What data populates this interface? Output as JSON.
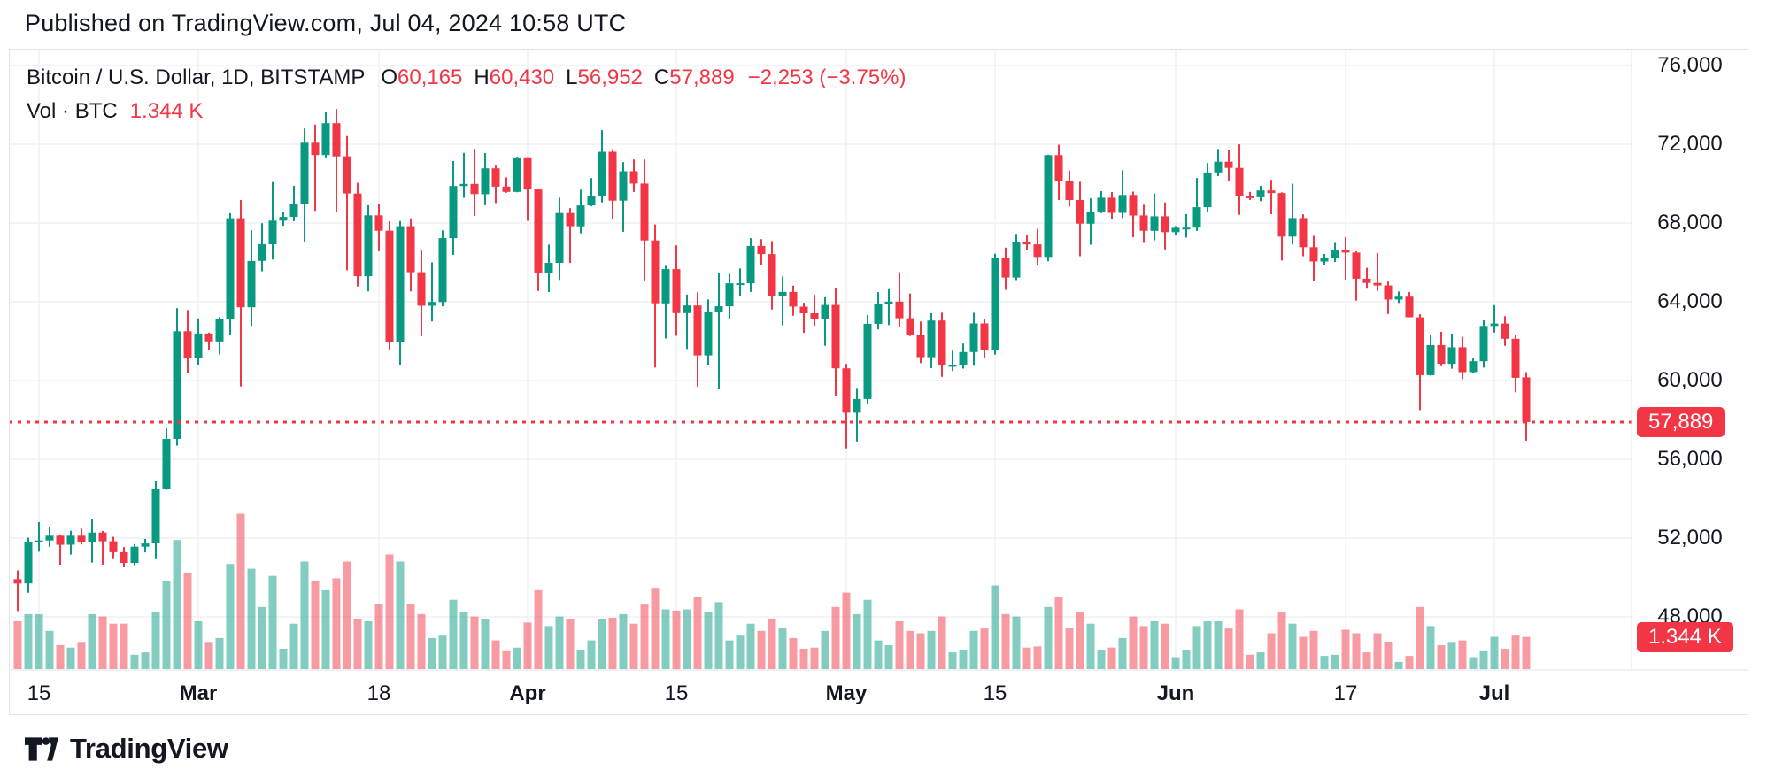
{
  "header": {
    "published_line": "Published on TradingView.com, Jul 04, 2024 10:58 UTC"
  },
  "legend": {
    "symbol_line": {
      "title": "Bitcoin / U.S. Dollar, 1D, BITSTAMP",
      "o_label": "O",
      "o": "60,165",
      "h_label": "H",
      "h": "60,430",
      "l_label": "L",
      "l": "56,952",
      "c_label": "C",
      "c": "57,889",
      "change": "−2,253 (−3.75%)"
    },
    "volume_line": {
      "label": "Vol · BTC",
      "value": "1.344 K"
    }
  },
  "price_axis": {
    "ticks": [
      {
        "label": "76,000",
        "value": 76000
      },
      {
        "label": "72,000",
        "value": 72000
      },
      {
        "label": "68,000",
        "value": 68000
      },
      {
        "label": "64,000",
        "value": 64000
      },
      {
        "label": "60,000",
        "value": 60000
      },
      {
        "label": "56,000",
        "value": 56000
      },
      {
        "label": "52,000",
        "value": 52000
      },
      {
        "label": "48,000",
        "value": 48000
      }
    ],
    "last_price_badge": "57,889",
    "volume_badge": "1.344 K"
  },
  "time_axis": {
    "ticks": [
      {
        "i": 2,
        "label": "15",
        "bold": false
      },
      {
        "i": 17,
        "label": "Mar",
        "bold": true
      },
      {
        "i": 34,
        "label": "18",
        "bold": false
      },
      {
        "i": 48,
        "label": "Apr",
        "bold": true
      },
      {
        "i": 62,
        "label": "15",
        "bold": false
      },
      {
        "i": 78,
        "label": "May",
        "bold": true
      },
      {
        "i": 92,
        "label": "15",
        "bold": false
      },
      {
        "i": 109,
        "label": "Jun",
        "bold": true
      },
      {
        "i": 125,
        "label": "17",
        "bold": false
      },
      {
        "i": 139,
        "label": "Jul",
        "bold": true
      }
    ]
  },
  "footer": {
    "brand": "TradingView"
  },
  "colors": {
    "up": "#089981",
    "down": "#F23645",
    "vol_up": "rgba(8,153,129,0.5)",
    "vol_down": "rgba(242,54,69,0.5)",
    "grid": "#EEF1F5",
    "frame": "#E0E3EB",
    "text": "#131722",
    "badge_bg": "#F23645",
    "dotted_line": "#F23645"
  },
  "chart_data": {
    "type": "candlestick+volume",
    "title": "Bitcoin / U.S. Dollar",
    "symbol": "BTCUSD",
    "exchange": "BITSTAMP",
    "timeframe": "1D",
    "legend_position": "top-left",
    "grid": true,
    "price_axis_ticks": [
      76000,
      72000,
      68000,
      64000,
      60000,
      56000,
      52000,
      48000
    ],
    "view_price_range": [
      45400,
      76900
    ],
    "last_close": 57889,
    "last_volume_k": 1.344,
    "columns": [
      "date",
      "open",
      "high",
      "low",
      "close",
      "volume_kBTC"
    ],
    "candles": [
      [
        "2024-02-13",
        49917,
        50368,
        48300,
        49699,
        2.0
      ],
      [
        "2024-02-14",
        49699,
        52025,
        49225,
        51795,
        2.3
      ],
      [
        "2024-02-15",
        51795,
        52816,
        51314,
        51880,
        2.3
      ],
      [
        "2024-02-16",
        51880,
        52555,
        51551,
        52124,
        1.6
      ],
      [
        "2024-02-17",
        52124,
        52191,
        50622,
        51662,
        1.0
      ],
      [
        "2024-02-18",
        51662,
        52377,
        51167,
        52122,
        0.9
      ],
      [
        "2024-02-19",
        52122,
        52488,
        51677,
        51779,
        1.1
      ],
      [
        "2024-02-20",
        51779,
        52985,
        50757,
        52284,
        2.3
      ],
      [
        "2024-02-21",
        52284,
        52368,
        50625,
        51839,
        2.2
      ],
      [
        "2024-02-22",
        51839,
        52066,
        50940,
        51288,
        1.9
      ],
      [
        "2024-02-23",
        51288,
        51549,
        50521,
        50744,
        1.9
      ],
      [
        "2024-02-24",
        50744,
        51698,
        50585,
        51568,
        0.6
      ],
      [
        "2024-02-25",
        51568,
        51956,
        51279,
        51728,
        0.7
      ],
      [
        "2024-02-26",
        51728,
        54910,
        50931,
        54476,
        2.4
      ],
      [
        "2024-02-27",
        54476,
        57585,
        54450,
        57037,
        3.7
      ],
      [
        "2024-02-28",
        57037,
        63676,
        56691,
        62504,
        5.4
      ],
      [
        "2024-02-29",
        62504,
        63585,
        60364,
        61130,
        4.0
      ],
      [
        "2024-03-01",
        61130,
        63155,
        60777,
        62387,
        2.0
      ],
      [
        "2024-03-02",
        62387,
        62433,
        61561,
        61987,
        1.1
      ],
      [
        "2024-03-03",
        61987,
        63231,
        61320,
        63113,
        1.3
      ],
      [
        "2024-03-04",
        63113,
        68499,
        62300,
        68245,
        4.4
      ],
      [
        "2024-03-05",
        68245,
        69170,
        59700,
        63724,
        6.5
      ],
      [
        "2024-03-06",
        63724,
        67641,
        62779,
        66074,
        4.2
      ],
      [
        "2024-03-07",
        66074,
        67990,
        65551,
        66925,
        2.6
      ],
      [
        "2024-03-08",
        66925,
        70083,
        66151,
        68124,
        3.9
      ],
      [
        "2024-03-09",
        68124,
        68541,
        67861,
        68313,
        0.85
      ],
      [
        "2024-03-10",
        68313,
        69887,
        68094,
        68955,
        1.9
      ],
      [
        "2024-03-11",
        68955,
        72800,
        67024,
        72078,
        4.5
      ],
      [
        "2024-03-12",
        72078,
        73000,
        68620,
        71452,
        3.7
      ],
      [
        "2024-03-13",
        71452,
        73637,
        71334,
        73072,
        3.3
      ],
      [
        "2024-03-14",
        73072,
        73794,
        68555,
        71388,
        3.8
      ],
      [
        "2024-03-15",
        71388,
        72419,
        65600,
        69499,
        4.5
      ],
      [
        "2024-03-16",
        69499,
        70043,
        64780,
        65300,
        2.1
      ],
      [
        "2024-03-17",
        65300,
        68904,
        64533,
        68393,
        2.0
      ],
      [
        "2024-03-18",
        68393,
        68956,
        66565,
        67609,
        2.7
      ],
      [
        "2024-03-19",
        67609,
        68097,
        61555,
        61937,
        4.8
      ],
      [
        "2024-03-20",
        61937,
        68100,
        60775,
        67840,
        4.5
      ],
      [
        "2024-03-21",
        67840,
        68240,
        64529,
        65501,
        2.7
      ],
      [
        "2024-03-22",
        65501,
        66649,
        62260,
        63796,
        2.3
      ],
      [
        "2024-03-23",
        63796,
        65999,
        63000,
        63990,
        1.3
      ],
      [
        "2024-03-24",
        63990,
        67628,
        63772,
        67234,
        1.4
      ],
      [
        "2024-03-25",
        67234,
        71150,
        66385,
        69880,
        2.9
      ],
      [
        "2024-03-26",
        69880,
        71561,
        69280,
        69988,
        2.4
      ],
      [
        "2024-03-27",
        69988,
        71769,
        68359,
        69469,
        2.2
      ],
      [
        "2024-03-28",
        69469,
        71552,
        68903,
        70780,
        2.1
      ],
      [
        "2024-03-29",
        70780,
        70916,
        69009,
        69850,
        1.2
      ],
      [
        "2024-03-30",
        69850,
        70321,
        69540,
        69582,
        0.75
      ],
      [
        "2024-03-31",
        69582,
        71366,
        69562,
        71333,
        0.9
      ],
      [
        "2024-04-01",
        71333,
        71342,
        68110,
        69702,
        1.95
      ],
      [
        "2024-04-02",
        69702,
        69708,
        64550,
        65446,
        3.3
      ],
      [
        "2024-04-03",
        65446,
        66903,
        64493,
        65980,
        1.8
      ],
      [
        "2024-04-04",
        65980,
        69291,
        65113,
        68508,
        2.2
      ],
      [
        "2024-04-05",
        68508,
        68756,
        65972,
        67837,
        2.1
      ],
      [
        "2024-04-06",
        67837,
        69692,
        67482,
        68896,
        0.8
      ],
      [
        "2024-04-07",
        68896,
        70284,
        68851,
        69360,
        1.2
      ],
      [
        "2024-04-08",
        69360,
        72715,
        69043,
        71620,
        2.1
      ],
      [
        "2024-04-09",
        71620,
        71742,
        68212,
        69140,
        2.15
      ],
      [
        "2024-04-10",
        69140,
        71093,
        67558,
        70631,
        2.3
      ],
      [
        "2024-04-11",
        70631,
        71227,
        69576,
        70006,
        1.9
      ],
      [
        "2024-04-12",
        70006,
        71222,
        65086,
        67116,
        2.7
      ],
      [
        "2024-04-13",
        67116,
        67929,
        60660,
        63924,
        3.4
      ],
      [
        "2024-04-14",
        63924,
        65824,
        62134,
        65661,
        2.5
      ],
      [
        "2024-04-15",
        65661,
        66867,
        62274,
        63426,
        2.45
      ],
      [
        "2024-04-16",
        63426,
        64365,
        61600,
        63811,
        2.5
      ],
      [
        "2024-04-17",
        63811,
        64486,
        59678,
        61277,
        3.0
      ],
      [
        "2024-04-18",
        61277,
        64117,
        60803,
        63470,
        2.4
      ],
      [
        "2024-04-19",
        63470,
        65450,
        59600,
        63770,
        2.8
      ],
      [
        "2024-04-20",
        63770,
        65419,
        63110,
        64940,
        1.2
      ],
      [
        "2024-04-21",
        64940,
        65695,
        64300,
        64941,
        1.4
      ],
      [
        "2024-04-22",
        64941,
        67232,
        64500,
        66837,
        1.9
      ],
      [
        "2024-04-23",
        66837,
        67184,
        65850,
        66423,
        1.6
      ],
      [
        "2024-04-24",
        66423,
        67084,
        63606,
        64290,
        2.1
      ],
      [
        "2024-04-25",
        64290,
        65280,
        62794,
        64498,
        1.7
      ],
      [
        "2024-04-26",
        64498,
        64820,
        63297,
        63756,
        1.3
      ],
      [
        "2024-04-27",
        63756,
        63950,
        62424,
        63419,
        0.85
      ],
      [
        "2024-04-28",
        63419,
        64355,
        62781,
        63113,
        0.9
      ],
      [
        "2024-04-29",
        63113,
        64228,
        61765,
        63841,
        1.6
      ],
      [
        "2024-04-30",
        63841,
        64700,
        59191,
        60622,
        2.6
      ],
      [
        "2024-05-01",
        60622,
        60841,
        56552,
        58364,
        3.2
      ],
      [
        "2024-05-02",
        58364,
        59625,
        56911,
        59060,
        2.3
      ],
      [
        "2024-05-03",
        59060,
        63333,
        58802,
        62882,
        2.9
      ],
      [
        "2024-05-04",
        62882,
        64494,
        62600,
        63892,
        1.2
      ],
      [
        "2024-05-05",
        63892,
        64640,
        62822,
        64012,
        1.0
      ],
      [
        "2024-05-06",
        64012,
        65500,
        62700,
        63165,
        2.0
      ],
      [
        "2024-05-07",
        63165,
        64420,
        62261,
        62312,
        1.6
      ],
      [
        "2024-05-08",
        62312,
        63000,
        60888,
        61187,
        1.5
      ],
      [
        "2024-05-09",
        61187,
        63420,
        60630,
        63049,
        1.6
      ],
      [
        "2024-05-10",
        63049,
        63450,
        60190,
        60792,
        2.2
      ],
      [
        "2024-05-11",
        60792,
        61515,
        60487,
        60793,
        0.7
      ],
      [
        "2024-05-12",
        60793,
        61880,
        60610,
        61448,
        0.8
      ],
      [
        "2024-05-13",
        61448,
        63440,
        60749,
        62901,
        1.6
      ],
      [
        "2024-05-14",
        62901,
        63109,
        61142,
        61552,
        1.7
      ],
      [
        "2024-05-15",
        61552,
        66440,
        61319,
        66206,
        3.5
      ],
      [
        "2024-05-16",
        66206,
        66750,
        64600,
        65231,
        2.3
      ],
      [
        "2024-05-17",
        65231,
        67450,
        65106,
        67051,
        2.2
      ],
      [
        "2024-05-18",
        67051,
        67400,
        66610,
        66918,
        0.9
      ],
      [
        "2024-05-19",
        66918,
        67705,
        65871,
        66278,
        0.95
      ],
      [
        "2024-05-20",
        66278,
        71472,
        66060,
        71446,
        2.6
      ],
      [
        "2024-05-21",
        71446,
        71979,
        69164,
        70152,
        3.0
      ],
      [
        "2024-05-22",
        70152,
        70666,
        68842,
        69168,
        1.7
      ],
      [
        "2024-05-23",
        69168,
        70093,
        66312,
        67966,
        2.4
      ],
      [
        "2024-05-24",
        67966,
        69255,
        66902,
        68548,
        1.9
      ],
      [
        "2024-05-25",
        68548,
        69622,
        68505,
        69288,
        0.8
      ],
      [
        "2024-05-26",
        69288,
        69576,
        68184,
        68518,
        0.9
      ],
      [
        "2024-05-27",
        68518,
        70687,
        68250,
        69426,
        1.3
      ],
      [
        "2024-05-28",
        69426,
        69594,
        67277,
        68385,
        2.2
      ],
      [
        "2024-05-29",
        68385,
        68926,
        66990,
        67607,
        1.8
      ],
      [
        "2024-05-30",
        67607,
        69500,
        67118,
        68344,
        2.0
      ],
      [
        "2024-05-31",
        68344,
        69046,
        66660,
        67540,
        1.9
      ],
      [
        "2024-06-01",
        67540,
        67850,
        67390,
        67760,
        0.5
      ],
      [
        "2024-06-02",
        67760,
        68450,
        67257,
        67768,
        0.8
      ],
      [
        "2024-06-03",
        67768,
        70288,
        67605,
        68806,
        1.8
      ],
      [
        "2024-06-04",
        68806,
        71047,
        68567,
        70568,
        2.0
      ],
      [
        "2024-06-05",
        70568,
        71758,
        70383,
        71114,
        2.0
      ],
      [
        "2024-06-06",
        71114,
        71700,
        70147,
        70800,
        1.7
      ],
      [
        "2024-06-07",
        70800,
        71997,
        68420,
        69355,
        2.5
      ],
      [
        "2024-06-08",
        69355,
        69582,
        69169,
        69310,
        0.6
      ],
      [
        "2024-06-09",
        69310,
        69887,
        69107,
        69654,
        0.7
      ],
      [
        "2024-06-10",
        69654,
        70195,
        68452,
        69523,
        1.5
      ],
      [
        "2024-06-11",
        69523,
        69560,
        66101,
        67313,
        2.4
      ],
      [
        "2024-06-12",
        67313,
        69999,
        66905,
        68252,
        1.9
      ],
      [
        "2024-06-13",
        68252,
        68443,
        66317,
        66773,
        1.35
      ],
      [
        "2024-06-14",
        66773,
        67350,
        65078,
        66043,
        1.6
      ],
      [
        "2024-06-15",
        66043,
        66426,
        65871,
        66211,
        0.55
      ],
      [
        "2024-06-16",
        66211,
        66990,
        66021,
        66640,
        0.6
      ],
      [
        "2024-06-17",
        66640,
        67288,
        65130,
        66500,
        1.65
      ],
      [
        "2024-06-18",
        66500,
        66569,
        64060,
        65175,
        1.5
      ],
      [
        "2024-06-19",
        65175,
        65727,
        64668,
        64960,
        0.7
      ],
      [
        "2024-06-20",
        64960,
        66482,
        64548,
        64829,
        1.5
      ],
      [
        "2024-06-21",
        64829,
        65025,
        63380,
        64116,
        1.15
      ],
      [
        "2024-06-22",
        64116,
        64522,
        63941,
        64261,
        0.3
      ],
      [
        "2024-06-23",
        64261,
        64491,
        63211,
        63212,
        0.55
      ],
      [
        "2024-06-24",
        63212,
        63369,
        58500,
        60277,
        2.6
      ],
      [
        "2024-06-25",
        60277,
        62298,
        60252,
        61804,
        1.8
      ],
      [
        "2024-06-26",
        61804,
        62477,
        60732,
        60851,
        1.0
      ],
      [
        "2024-06-27",
        60851,
        62389,
        60605,
        61690,
        1.1
      ],
      [
        "2024-06-28",
        61690,
        62222,
        60070,
        60427,
        1.2
      ],
      [
        "2024-06-29",
        60427,
        61122,
        60361,
        60979,
        0.5
      ],
      [
        "2024-06-30",
        60979,
        63058,
        60658,
        62772,
        0.75
      ],
      [
        "2024-07-01",
        62772,
        63830,
        62437,
        62894,
        1.35
      ],
      [
        "2024-07-02",
        62894,
        63270,
        61769,
        62122,
        0.85
      ],
      [
        "2024-07-03",
        62122,
        62298,
        59400,
        60142,
        1.4
      ],
      [
        "2024-07-04",
        60165,
        60430,
        56952,
        57889,
        1.344
      ]
    ]
  }
}
